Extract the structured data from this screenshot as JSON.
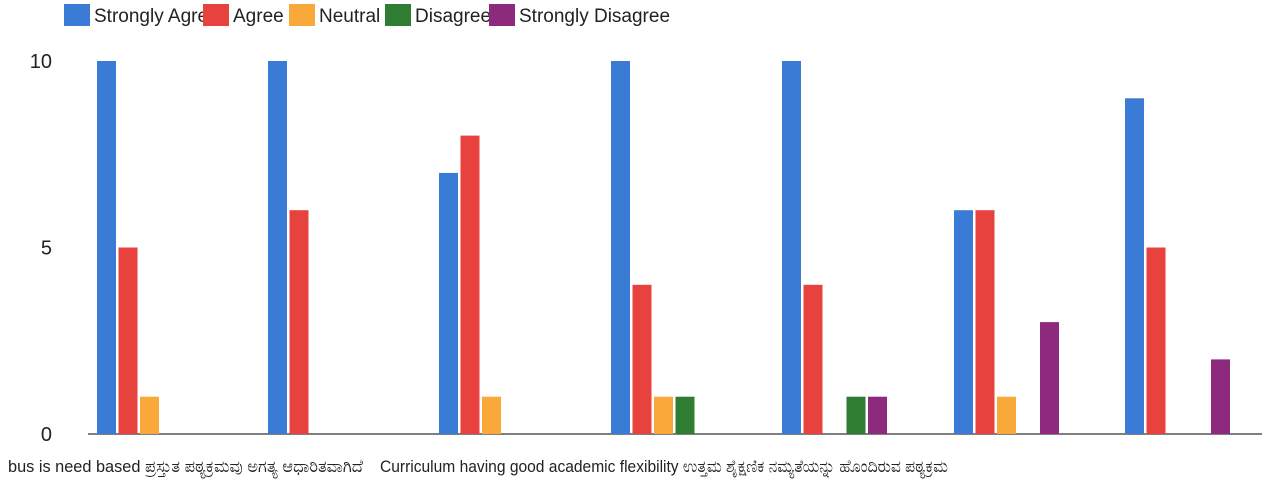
{
  "chart_data": {
    "type": "bar",
    "categories": [
      "bus is need based ಪ್ರಸ್ತುತ ಪಠ್ಯಕ್ರಮವು ಅಗತ್ಯ ಆಧಾರಿತವಾಗಿದೆ",
      "",
      "",
      "Curriculum having good academic flexibility ಉತ್ತಮ ಶೈಕ್ಷಣಿಕ ನಮ್ಯತೆಯನ್ನು ಹೊಂದಿರುವ ಪಠ್ಯಕ್ರಮ",
      "",
      "",
      ""
    ],
    "series": [
      {
        "name": "Strongly Agree",
        "color": "#3a7bd5",
        "values": [
          10,
          10,
          7,
          10,
          10,
          6,
          9
        ]
      },
      {
        "name": "Agree",
        "color": "#e8423f",
        "values": [
          5,
          6,
          8,
          4,
          4,
          6,
          5
        ]
      },
      {
        "name": "Neutral",
        "color": "#f9a83a",
        "values": [
          1,
          0,
          1,
          1,
          0,
          1,
          0
        ]
      },
      {
        "name": "Disagree",
        "color": "#2e7d32",
        "values": [
          0,
          0,
          0,
          1,
          1,
          0,
          0
        ]
      },
      {
        "name": "Strongly Disagree",
        "color": "#8e2a7e",
        "values": [
          0,
          0,
          0,
          0,
          1,
          3,
          2
        ]
      }
    ],
    "yticks": [
      "0",
      "5",
      "10"
    ],
    "ylim": [
      0,
      10
    ],
    "legend_position": "top-left",
    "grid": false
  }
}
